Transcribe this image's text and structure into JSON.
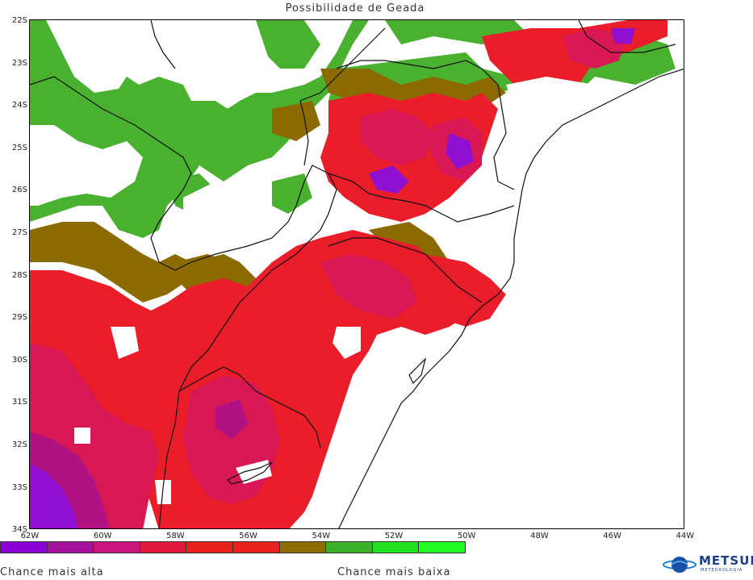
{
  "title": "Possibilidade de Geada",
  "lat_labels": [
    "22S",
    "23S",
    "24S",
    "25S",
    "26S",
    "27S",
    "28S",
    "29S",
    "30S",
    "31S",
    "32S",
    "33S",
    "34S"
  ],
  "lon_labels": [
    "62W",
    "60W",
    "58W",
    "56W",
    "54W",
    "52W",
    "50W",
    "48W",
    "46W",
    "44W"
  ],
  "legend": {
    "colors": [
      "#8a00d6",
      "#a4129c",
      "#c7157b",
      "#e0183d",
      "#e8201e",
      "#e8201e",
      "#8b6d00",
      "#3bb02a",
      "#22e022",
      "#22ff22"
    ],
    "high_label": "Chance mais alta",
    "low_label": "Chance mais baixa"
  },
  "palette": {
    "purple": "#8f10d0",
    "magenta": "#b01284",
    "crimson": "#d81855",
    "red": "#ea1d2a",
    "brown": "#8b6b00",
    "green": "#49b030",
    "bright_green": "#22e022"
  },
  "logo": {
    "name": "METSUL",
    "subtitle": "METEOROLOGIA"
  }
}
